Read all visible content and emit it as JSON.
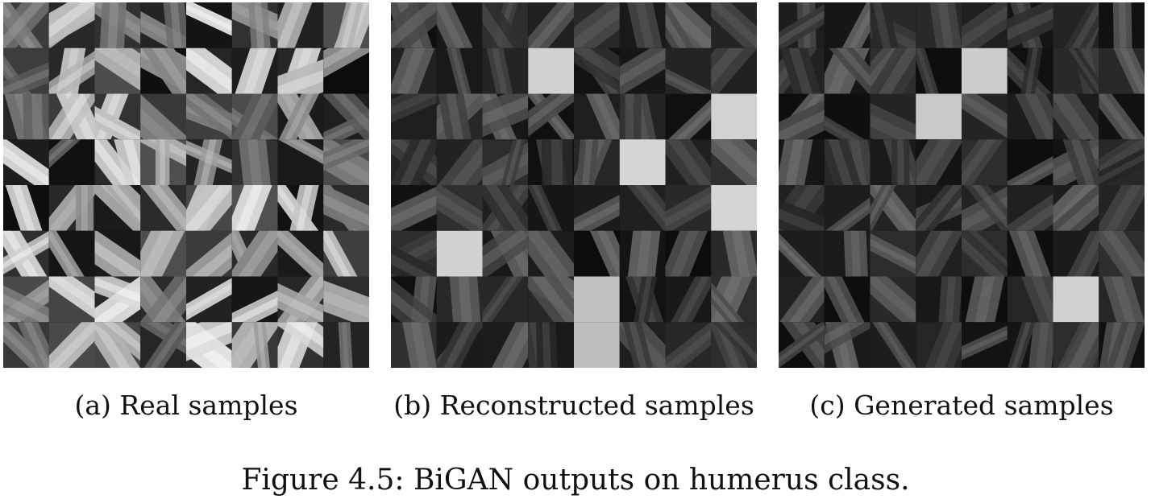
{
  "panels": [
    {
      "id": "a",
      "caption": "(a) Real samples",
      "grid": {
        "rows": 8,
        "cols": 8
      },
      "tone": "real",
      "bright_tiles": []
    },
    {
      "id": "b",
      "caption": "(b) Reconstructed samples",
      "grid": {
        "rows": 8,
        "cols": 8
      },
      "tone": "dark",
      "bright_tiles": [
        [
          1,
          3
        ],
        [
          2,
          7
        ],
        [
          3,
          5
        ],
        [
          4,
          7
        ],
        [
          5,
          1
        ],
        [
          6,
          4
        ],
        [
          7,
          4
        ]
      ]
    },
    {
      "id": "c",
      "caption": "(c) Generated samples",
      "grid": {
        "rows": 8,
        "cols": 8
      },
      "tone": "dark",
      "bright_tiles": [
        [
          1,
          4
        ],
        [
          2,
          3
        ],
        [
          6,
          6
        ]
      ]
    }
  ],
  "figure_caption": "Figure 4.5: BiGAN outputs on humerus class."
}
